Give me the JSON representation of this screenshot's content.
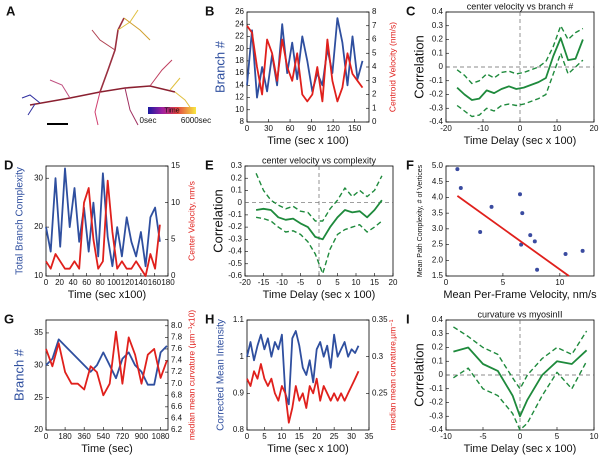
{
  "panel_a": {
    "letter": "A",
    "colorbar_label": "Time",
    "colorbar_min": "0sec",
    "colorbar_max": "6000sec"
  },
  "chart_data": [
    {
      "type": "line",
      "panel": "B",
      "xlabel": "Time (sec x 100)",
      "ylabel": "Branch #",
      "y2label": "Centroid Velocity (nm/s)",
      "x": [
        0,
        7,
        14,
        21,
        28,
        35,
        42,
        49,
        56,
        63,
        70,
        77,
        84,
        91,
        98,
        105,
        112,
        119,
        126,
        133,
        140,
        147,
        154,
        161
      ],
      "xlim": [
        0,
        170
      ],
      "xticks": [
        0,
        30,
        60,
        90,
        120,
        150
      ],
      "ylim": [
        8,
        26
      ],
      "yticks": [
        8,
        10,
        12,
        14,
        16,
        18,
        20,
        22,
        24,
        26
      ],
      "y2lim": [
        0,
        8
      ],
      "y2ticks": [
        0,
        1,
        2,
        3,
        4,
        5,
        6,
        7,
        8
      ],
      "series": [
        {
          "color": "#2f4f9f",
          "style": "solid",
          "values": [
            14,
            23,
            12,
            17,
            13,
            19,
            14,
            24,
            16,
            21,
            15,
            22,
            18,
            13,
            16,
            14,
            20,
            16,
            25,
            21,
            14,
            22,
            15,
            18
          ]
        },
        {
          "color": "#e0201c",
          "style": "solid",
          "axis": "y2",
          "values": [
            7,
            6.5,
            4,
            2,
            6,
            5,
            3,
            6,
            4,
            3,
            5,
            2,
            1.5,
            2,
            4,
            1.5,
            6,
            3,
            1.5,
            2.5,
            5,
            3.5,
            3,
            2.5
          ]
        }
      ]
    },
    {
      "type": "line",
      "panel": "C",
      "title": "center velocity vs branch #",
      "xlabel": "Time Delay (sec x 100)",
      "ylabel": "Correlation",
      "reference": {
        "x": 0,
        "y": 0
      },
      "x": [
        -17,
        -15,
        -13,
        -11,
        -9,
        -7,
        -5,
        -3,
        -1,
        1,
        3,
        5,
        7,
        9,
        11,
        13,
        15,
        17
      ],
      "xlim": [
        -20,
        20
      ],
      "xticks": [
        -20,
        -10,
        0,
        10,
        20
      ],
      "ylim": [
        -0.4,
        0.4
      ],
      "yticks": [
        -0.4,
        -0.3,
        -0.2,
        -0.1,
        0,
        0.1,
        0.2,
        0.3,
        0.4
      ],
      "series": [
        {
          "color": "#1e8a3c",
          "style": "solid",
          "values": [
            -0.15,
            -0.2,
            -0.24,
            -0.23,
            -0.17,
            -0.19,
            -0.16,
            -0.14,
            -0.16,
            -0.15,
            -0.13,
            -0.11,
            -0.08,
            0.08,
            0.21,
            0.05,
            0.06,
            0.2
          ]
        },
        {
          "color": "#1e8a3c",
          "style": "dashed",
          "values": [
            -0.02,
            -0.06,
            -0.12,
            -0.1,
            -0.05,
            -0.08,
            -0.04,
            -0.03,
            -0.05,
            -0.04,
            -0.02,
            0,
            0.04,
            0.15,
            0.3,
            0.2,
            0.25,
            0.28
          ]
        },
        {
          "color": "#1e8a3c",
          "style": "dashed",
          "values": [
            -0.28,
            -0.32,
            -0.36,
            -0.35,
            -0.3,
            -0.32,
            -0.28,
            -0.27,
            -0.28,
            -0.27,
            -0.25,
            -0.23,
            -0.2,
            -0.05,
            0.1,
            -0.05,
            0,
            0.05
          ]
        }
      ]
    },
    {
      "type": "line",
      "panel": "D",
      "xlabel": "Time (sec x100)",
      "ylabel": "Total Branch Complexity",
      "y2label": "Center Velocity, nm/s",
      "x": [
        0,
        7,
        14,
        21,
        28,
        35,
        42,
        49,
        56,
        63,
        70,
        77,
        84,
        91,
        98,
        105,
        112,
        119,
        126,
        133,
        140,
        147,
        154,
        161,
        168
      ],
      "xlim": [
        0,
        180
      ],
      "xticks": [
        0,
        20,
        40,
        60,
        80,
        100,
        120,
        140,
        160,
        180
      ],
      "ylim": [
        10,
        32.5
      ],
      "yticks": [
        10,
        20,
        30
      ],
      "y2lim": [
        0,
        15
      ],
      "y2ticks": [
        0,
        5,
        10,
        15
      ],
      "series": [
        {
          "color": "#2f4f9f",
          "style": "solid",
          "values": [
            20,
            15,
            30,
            16,
            32,
            20,
            28,
            17,
            24,
            15,
            25,
            14,
            31,
            18,
            12,
            20,
            14,
            22,
            17,
            14,
            19,
            12,
            22,
            24,
            17
          ]
        },
        {
          "color": "#e0201c",
          "style": "solid",
          "axis": "y2",
          "values": [
            2,
            1,
            3,
            2,
            1,
            1,
            2,
            1,
            10,
            12,
            5,
            1,
            2,
            13,
            6,
            1,
            2,
            1,
            1,
            2,
            1,
            0,
            3,
            1,
            7
          ]
        }
      ]
    },
    {
      "type": "line",
      "panel": "E",
      "title": "center velocity vs complexity",
      "xlabel": "Time Delay (sec x 100)",
      "ylabel": "Correlation",
      "reference": {
        "x": 0,
        "y": 0
      },
      "x": [
        -17,
        -15,
        -13,
        -11,
        -9,
        -7,
        -5,
        -3,
        -1,
        1,
        3,
        5,
        7,
        9,
        11,
        13,
        15,
        17
      ],
      "xlim": [
        -20,
        20
      ],
      "xticks": [
        -20,
        -15,
        -10,
        -5,
        0,
        5,
        10,
        15,
        20
      ],
      "ylim": [
        -0.6,
        0.3
      ],
      "yticks": [
        -0.6,
        -0.5,
        -0.4,
        -0.3,
        -0.2,
        -0.1,
        0,
        0.1,
        0.2,
        0.3
      ],
      "series": [
        {
          "color": "#1e8a3c",
          "style": "solid",
          "values": [
            -0.06,
            -0.05,
            -0.06,
            -0.12,
            -0.14,
            -0.13,
            -0.17,
            -0.2,
            -0.28,
            -0.3,
            -0.2,
            -0.12,
            -0.06,
            -0.08,
            -0.07,
            -0.12,
            -0.06,
            0.02
          ]
        },
        {
          "color": "#1e8a3c",
          "style": "dashed",
          "values": [
            0.24,
            0.1,
            0.02,
            -0.02,
            -0.05,
            -0.03,
            -0.07,
            -0.08,
            -0.15,
            -0.15,
            -0.05,
            0.02,
            0.12,
            0.05,
            0.1,
            0.05,
            0.1,
            0.22
          ]
        },
        {
          "color": "#1e8a3c",
          "style": "dashed",
          "values": [
            -0.12,
            -0.13,
            -0.15,
            -0.2,
            -0.24,
            -0.23,
            -0.26,
            -0.32,
            -0.42,
            -0.58,
            -0.38,
            -0.26,
            -0.22,
            -0.2,
            -0.18,
            -0.24,
            -0.2,
            -0.15
          ]
        }
      ]
    },
    {
      "type": "scatter",
      "panel": "F",
      "xlabel": "Mean Per-Frame Velocity, nm/s",
      "ylabel": "Mean Path Complexity, # of Vertices",
      "color": "#3a4ba0",
      "x": [
        1,
        1.3,
        3,
        4,
        6.5,
        6.7,
        6.6,
        7.4,
        7.8,
        8,
        10.5,
        12
      ],
      "values": [
        4.9,
        4.3,
        2.9,
        3.7,
        4.1,
        3.5,
        2.5,
        2.8,
        2.6,
        1.7,
        2.2,
        2.3
      ],
      "fit": {
        "color": "#e0201c",
        "x": [
          1,
          10.8
        ],
        "y": [
          4.05,
          1.5
        ]
      },
      "xlim": [
        0,
        13
      ],
      "xticks": [
        0,
        5,
        10
      ],
      "ylim": [
        1.5,
        5
      ],
      "yticks": [
        1.5,
        {
          "value": 2,
          "label": "2.0"
        },
        2.5,
        {
          "value": 3,
          "label": "3.0"
        },
        3.5,
        {
          "value": 4,
          "label": "4.0"
        },
        4.5,
        {
          "value": 5,
          "label": "5.0"
        }
      ]
    },
    {
      "type": "line",
      "panel": "G",
      "xlabel": "Time (sec)",
      "ylabel": "Branch #",
      "y2label": "median mean curvature (µm⁻¹x10)",
      "x": [
        0,
        60,
        120,
        180,
        240,
        300,
        360,
        420,
        480,
        540,
        600,
        660,
        720,
        780,
        840,
        900,
        960,
        1020,
        1080,
        1140
      ],
      "xlim": [
        0,
        1150
      ],
      "xticks": [
        0,
        180,
        360,
        540,
        720,
        900,
        1080
      ],
      "ylim": [
        20,
        37
      ],
      "yticks": [
        20,
        25,
        30,
        35
      ],
      "y2lim": [
        6.2,
        8.1
      ],
      "y2ticks": [
        6.2,
        6.4,
        6.6,
        6.8,
        {
          "value": 7,
          "label": "7.0"
        },
        7.2,
        7.4,
        7.6,
        7.8,
        {
          "value": 8,
          "label": "8.0"
        }
      ],
      "series": [
        {
          "color": "#2f4f9f",
          "style": "solid",
          "values": [
            30,
            31,
            34,
            33,
            32,
            31,
            30,
            29,
            30,
            32,
            30,
            28,
            31,
            32,
            30,
            29,
            27,
            27,
            32,
            33
          ]
        },
        {
          "color": "#e0201c",
          "style": "solid",
          "axis": "y2",
          "values": [
            7.6,
            7.3,
            7.7,
            7.2,
            7.0,
            7.0,
            6.9,
            7.3,
            7.2,
            6.8,
            7.0,
            7.9,
            7.0,
            7.8,
            7.5,
            7.0,
            7.5,
            7.6,
            7.1,
            7.4
          ]
        }
      ]
    },
    {
      "type": "line",
      "panel": "H",
      "xlabel": "Time (sec x 100)",
      "ylabel": "Corrected Mean Intensity",
      "y2label": "median mean curvature,µm⁻¹",
      "x": [
        0,
        1,
        2,
        3,
        4,
        5,
        6,
        7,
        8,
        9,
        10,
        11,
        12,
        13,
        14,
        15,
        16,
        17,
        18,
        19,
        20,
        21,
        22,
        23,
        24,
        25,
        26,
        27,
        28,
        29,
        30,
        31,
        32
      ],
      "xlim": [
        0,
        35
      ],
      "xticks": [
        0,
        5,
        10,
        15,
        20,
        25,
        30,
        35
      ],
      "ylim": [
        0.8,
        1.1
      ],
      "yticks": [
        0.8,
        0.9,
        1,
        1.1
      ],
      "y2lim": [
        0.2,
        0.35
      ],
      "y2ticks": [
        0.25,
        0.3,
        0.35
      ],
      "series": [
        {
          "color": "#2f4f9f",
          "style": "solid",
          "values": [
            1.0,
            1.04,
            0.99,
            1.03,
            1.06,
            1.02,
            1.05,
            1.0,
            1.04,
            1.02,
            1.06,
            0.9,
            0.87,
            1.05,
            1.07,
            1.03,
            0.97,
            0.95,
            0.99,
            0.93,
            1.02,
            1.04,
            1.0,
            1.03,
            0.97,
            1.06,
            1.0,
            1.02,
            1.04,
            1.0,
            1.02,
            1.01,
            1.03
          ]
        },
        {
          "color": "#e0201c",
          "style": "solid",
          "axis": "y2",
          "values": [
            0.27,
            0.26,
            0.28,
            0.27,
            0.29,
            0.27,
            0.26,
            0.27,
            0.25,
            0.24,
            0.26,
            0.25,
            0.21,
            0.23,
            0.26,
            0.24,
            0.25,
            0.23,
            0.26,
            0.25,
            0.27,
            0.24,
            0.26,
            0.25,
            0.24,
            0.25,
            0.24,
            0.25,
            0.24,
            0.25,
            0.26,
            0.27,
            0.28
          ]
        }
      ]
    },
    {
      "type": "line",
      "panel": "I",
      "title": "curvature vs myosinII",
      "xlabel": "Time Delay (sec x 100)",
      "ylabel": "Correlation",
      "reference": {
        "x": 0,
        "y": 0
      },
      "x": [
        -9,
        -7,
        -5,
        -3,
        -1,
        0,
        1,
        3,
        5,
        7,
        9
      ],
      "xlim": [
        -10,
        10
      ],
      "xticks": [
        -10,
        -5,
        0,
        5,
        10
      ],
      "ylim": [
        -0.4,
        0.4
      ],
      "yticks": [
        -0.4,
        -0.3,
        -0.2,
        -0.1,
        0,
        0.1,
        0.2,
        0.3,
        0.4
      ],
      "series": [
        {
          "color": "#1e8a3c",
          "style": "solid",
          "values": [
            0.17,
            0.2,
            0.08,
            0.03,
            -0.15,
            -0.3,
            -0.18,
            0,
            0.1,
            0.08,
            0.18
          ]
        },
        {
          "color": "#1e8a3c",
          "style": "dashed",
          "values": [
            0.35,
            0.28,
            0.2,
            0.15,
            -0.02,
            -0.1,
            0,
            0.12,
            0.2,
            0.15,
            0.32
          ]
        },
        {
          "color": "#1e8a3c",
          "style": "dashed",
          "values": [
            -0.02,
            0.05,
            -0.1,
            -0.15,
            -0.28,
            -0.4,
            -0.35,
            -0.15,
            0.02,
            -0.1,
            0.1
          ]
        }
      ]
    }
  ]
}
